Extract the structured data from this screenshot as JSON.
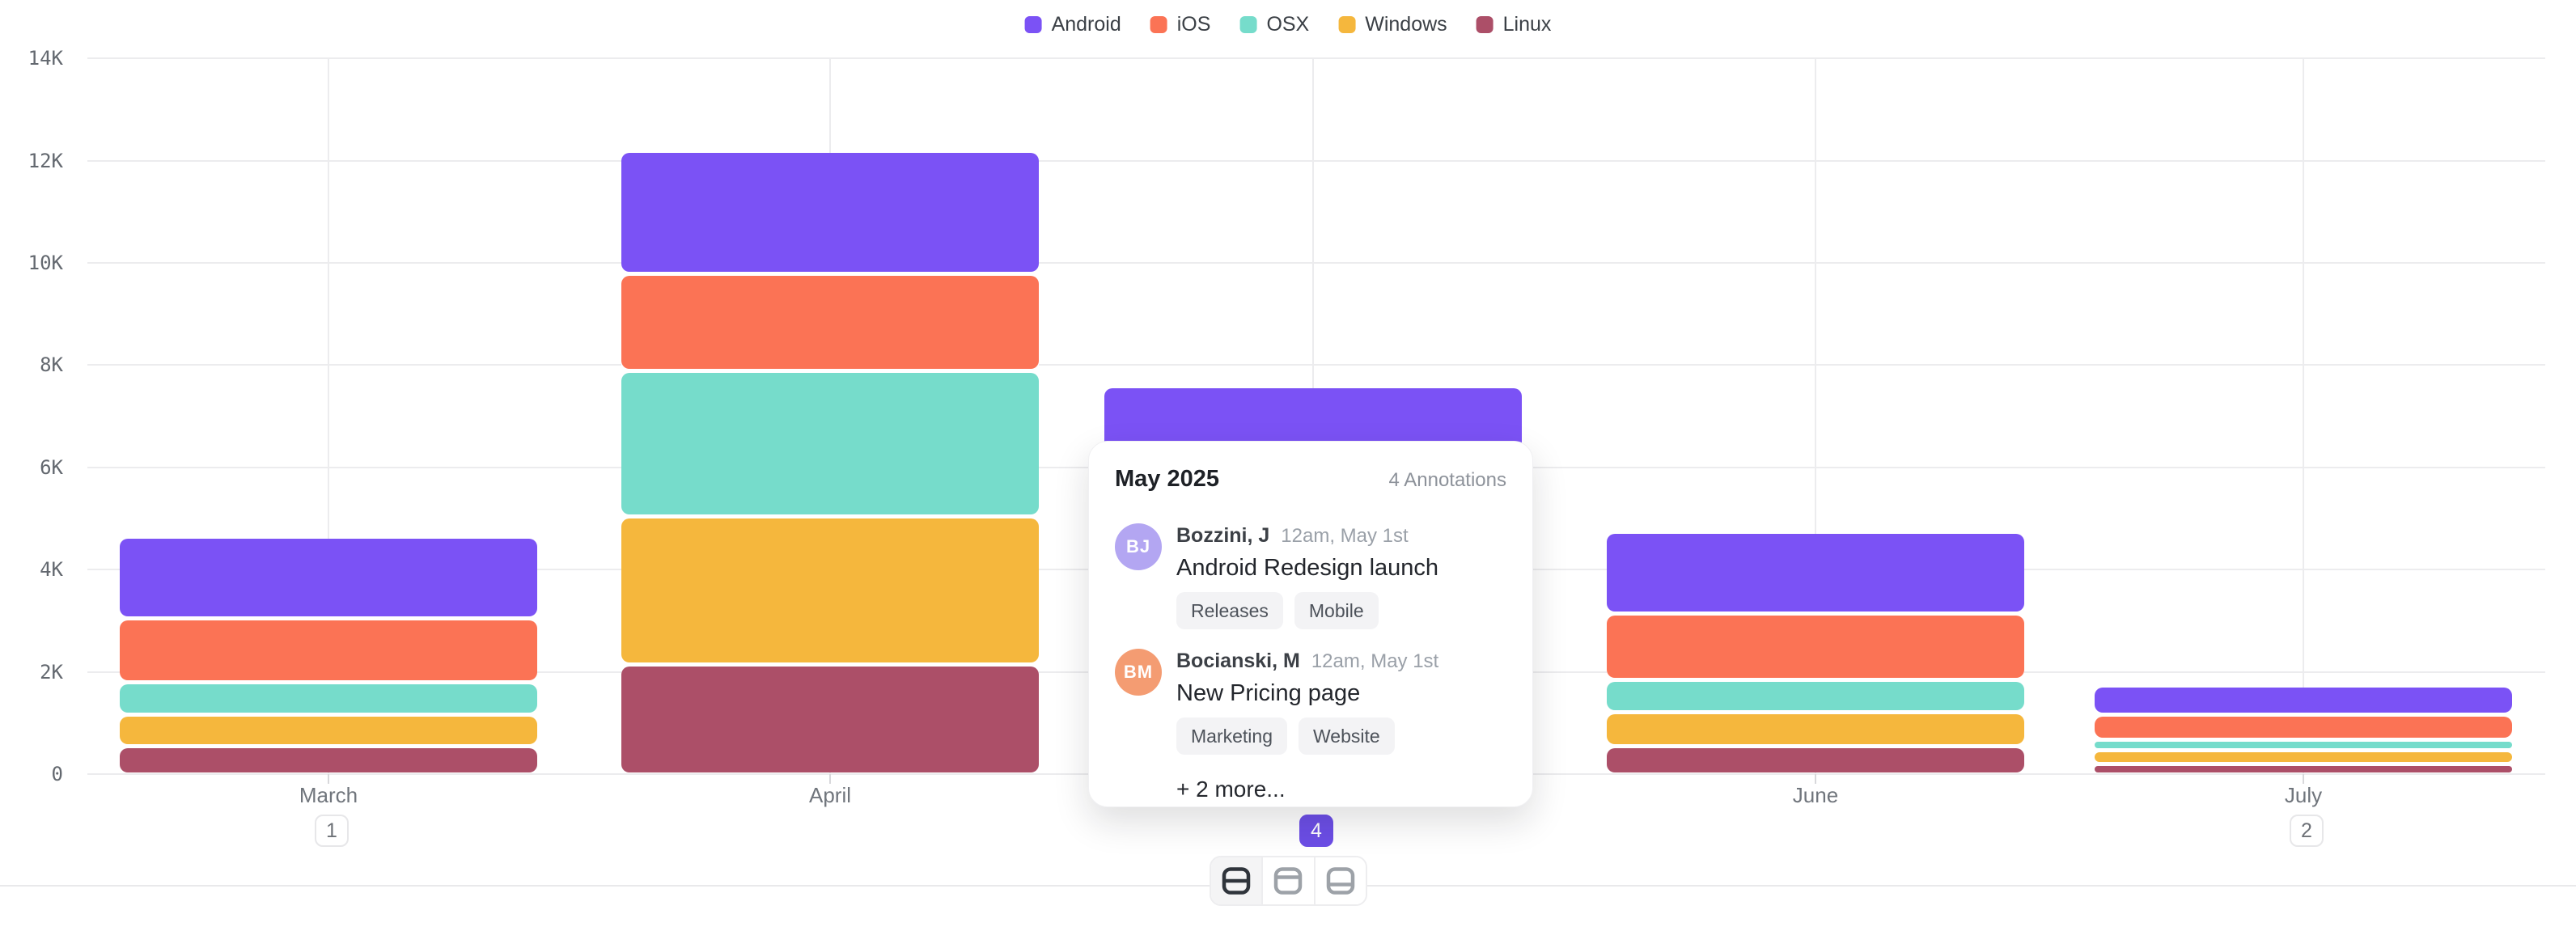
{
  "legend": [
    {
      "label": "Android",
      "color": "#7b52f5"
    },
    {
      "label": "iOS",
      "color": "#fb7355"
    },
    {
      "label": "OSX",
      "color": "#76dccb"
    },
    {
      "label": "Windows",
      "color": "#f5b73d"
    },
    {
      "label": "Linux",
      "color": "#ac4f68"
    }
  ],
  "chart_data": {
    "type": "bar",
    "stacked": true,
    "title": "",
    "categories": [
      "March",
      "April",
      "May",
      "June",
      "July"
    ],
    "series": [
      {
        "name": "Android",
        "color": "#7b52f5",
        "values": [
          1600,
          2400,
          2000,
          1600,
          575
        ]
      },
      {
        "name": "iOS",
        "color": "#fb7355",
        "values": [
          1250,
          1900,
          1700,
          1300,
          490
        ]
      },
      {
        "name": "OSX",
        "color": "#76dccb",
        "values": [
          630,
          2850,
          1500,
          630,
          210
        ]
      },
      {
        "name": "Windows",
        "color": "#f5b73d",
        "values": [
          620,
          2900,
          1400,
          670,
          260
        ]
      },
      {
        "name": "Linux",
        "color": "#ac4f68",
        "values": [
          500,
          2100,
          950,
          500,
          165
        ]
      }
    ],
    "ylim": [
      0,
      14000
    ],
    "yticks": [
      "0",
      "2K",
      "4K",
      "6K",
      "8K",
      "10K",
      "12K",
      "14K"
    ],
    "grid": true,
    "legend_position": "top-center"
  },
  "x_axis": {
    "months": [
      {
        "label": "March",
        "badge": "1",
        "badge_active": false
      },
      {
        "label": "April",
        "badge": "",
        "badge_active": false
      },
      {
        "label": "May",
        "badge": "4",
        "badge_active": true
      },
      {
        "label": "June",
        "badge": "",
        "badge_active": false
      },
      {
        "label": "July",
        "badge": "2",
        "badge_active": false
      }
    ]
  },
  "popover": {
    "title": "May 2025",
    "count_label": "4 Annotations",
    "items": [
      {
        "initials": "BJ",
        "avatar_color": "#b3a6f2",
        "author": "Bozzini, J",
        "timestamp": "12am, May 1st",
        "title": "Android Redesign launch",
        "tags": [
          "Releases",
          "Mobile"
        ]
      },
      {
        "initials": "BM",
        "avatar_color": "#f49c72",
        "author": "Bocianski, M",
        "timestamp": "12am, May 1st",
        "title": "New Pricing page",
        "tags": [
          "Marketing",
          "Website"
        ]
      }
    ],
    "more_label": "+ 2 more..."
  },
  "toolbar": {
    "buttons": [
      {
        "icon": "split-middle-icon",
        "active": true
      },
      {
        "icon": "panel-top-icon",
        "active": false
      },
      {
        "icon": "panel-bottom-icon",
        "active": false
      }
    ]
  },
  "colors": {
    "accent": "#6c4ee6",
    "gridline": "#ececee",
    "axis_text": "#63686f",
    "divider": "#e9e9eb"
  }
}
